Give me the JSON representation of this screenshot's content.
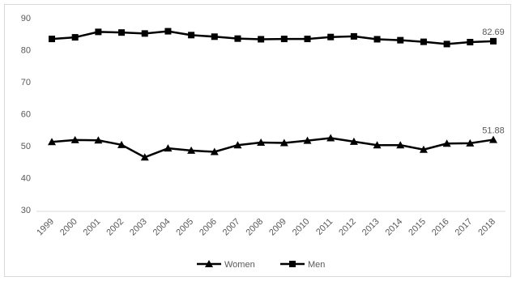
{
  "chart_data": {
    "type": "line",
    "x": [
      "1999",
      "2000",
      "2001",
      "2002",
      "2003",
      "2004",
      "2005",
      "2006",
      "2007",
      "2008",
      "2009",
      "2010",
      "2011",
      "2012",
      "2013",
      "2014",
      "2015",
      "2016",
      "2017",
      "2018"
    ],
    "yticks": [
      "30",
      "40",
      "50",
      "60",
      "70",
      "80",
      "90"
    ],
    "ylim": [
      30,
      90
    ],
    "grid": false,
    "legend_position": "bottom",
    "series": [
      {
        "name": "Women",
        "marker": "triangle",
        "color": "#000000",
        "values": [
          51.2,
          51.8,
          51.7,
          50.3,
          46.4,
          49.2,
          48.5,
          48.1,
          50.2,
          51.0,
          50.9,
          51.6,
          52.4,
          51.3,
          50.2,
          50.2,
          48.8,
          50.7,
          50.8,
          51.88
        ],
        "end_label": "51.88"
      },
      {
        "name": "Men",
        "marker": "square",
        "color": "#000000",
        "values": [
          83.4,
          83.9,
          85.6,
          85.4,
          85.1,
          85.8,
          84.6,
          84.1,
          83.5,
          83.3,
          83.4,
          83.4,
          84.0,
          84.2,
          83.3,
          83.0,
          82.5,
          81.8,
          82.4,
          82.69
        ],
        "end_label": "82.69"
      }
    ]
  }
}
